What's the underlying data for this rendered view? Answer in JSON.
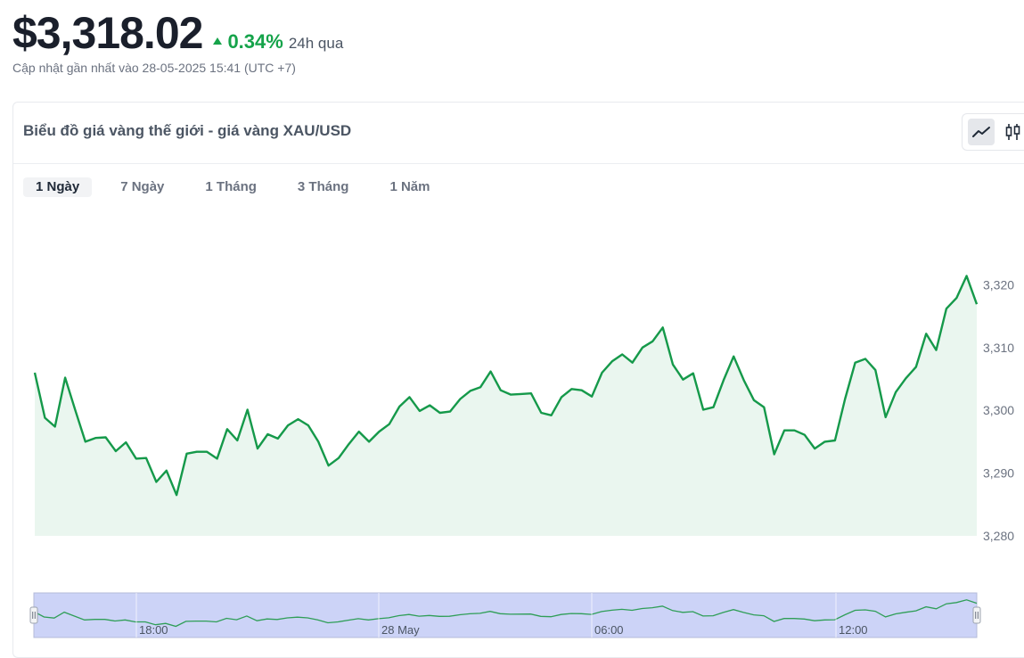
{
  "header": {
    "price": "$3,318.02",
    "change_pct": "0.34%",
    "change_period": "24h qua",
    "updated": "Cập nhật gần nhất vào 28-05-2025 15:41 (UTC +7)",
    "up_color": "#16a34a"
  },
  "card": {
    "title": "Biểu đồ giá vàng thế giới - giá vàng XAU/USD",
    "chart_types": [
      {
        "name": "line-chart-icon",
        "active": true
      },
      {
        "name": "candlestick-icon",
        "active": false
      }
    ]
  },
  "tabs": [
    "1 Ngày",
    "7 Ngày",
    "1 Tháng",
    "3 Tháng",
    "1 Năm"
  ],
  "active_tab": 0,
  "chart_data": {
    "type": "area",
    "line_color": "#15994a",
    "fill_color": "#eaf6ef",
    "ylim": [
      3280,
      3322
    ],
    "yticks": [
      3280,
      3290,
      3300,
      3310,
      3320
    ],
    "ytick_labels": [
      "3,280",
      "3,290",
      "3,300",
      "3,310",
      "3,320"
    ],
    "values": [
      3306.0,
      3298.8,
      3297.4,
      3305.2,
      3300.0,
      3295.0,
      3295.6,
      3295.7,
      3293.5,
      3294.9,
      3292.3,
      3292.4,
      3288.6,
      3290.4,
      3286.5,
      3293.1,
      3293.4,
      3293.4,
      3292.3,
      3297.0,
      3295.2,
      3300.1,
      3293.9,
      3296.2,
      3295.5,
      3297.6,
      3298.6,
      3297.6,
      3295.0,
      3291.2,
      3292.4,
      3294.6,
      3296.6,
      3295.0,
      3296.6,
      3297.8,
      3300.6,
      3302.1,
      3299.9,
      3300.8,
      3299.6,
      3299.8,
      3301.8,
      3303.1,
      3303.7,
      3306.2,
      3303.2,
      3302.5,
      3302.6,
      3302.7,
      3299.6,
      3299.2,
      3302.1,
      3303.4,
      3303.2,
      3302.2,
      3306.0,
      3307.8,
      3308.9,
      3307.6,
      3310.0,
      3311.0,
      3313.2,
      3307.3,
      3304.9,
      3305.9,
      3300.1,
      3300.5,
      3304.8,
      3308.6,
      3304.8,
      3301.6,
      3300.5,
      3293.0,
      3296.8,
      3296.8,
      3296.1,
      3293.9,
      3295.0,
      3295.2,
      3301.8,
      3307.6,
      3308.2,
      3306.4,
      3298.9,
      3302.9,
      3305.1,
      3306.9,
      3312.2,
      3309.6,
      3316.2,
      3317.9,
      3321.4,
      3316.9
    ],
    "navigator": {
      "x_labels": [
        "18:00",
        "28 May",
        "06:00",
        "12:00"
      ],
      "fill_color": "#ccd3f7",
      "border_color": "#b4bbd9"
    }
  }
}
